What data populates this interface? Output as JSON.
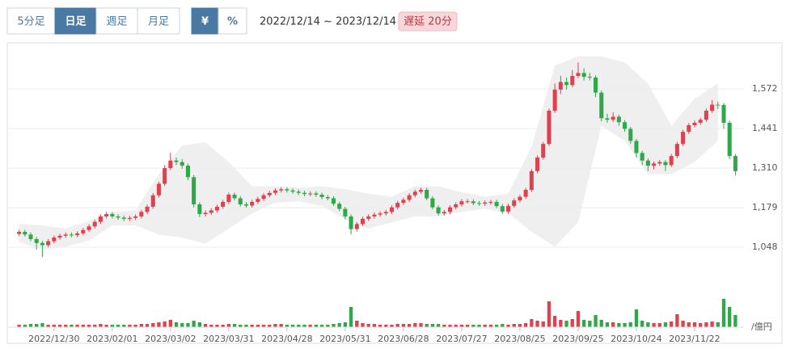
{
  "toolbar": {
    "intervals": [
      "5分足",
      "日足",
      "週足",
      "月足"
    ],
    "units": [
      "¥",
      "%"
    ],
    "range": "2022/12/14 ~ 2023/12/14",
    "delay": "遅延 20分"
  },
  "chart_data": {
    "type": "candlestick",
    "up_color": "#e0414f",
    "down_color": "#2fa84a",
    "band_color": "#efefef",
    "grid": true,
    "ylim": [
      984,
      1706
    ],
    "yticks": [
      {
        "value": 1048,
        "label": "1,048"
      },
      {
        "value": 1179,
        "label": "1,179"
      },
      {
        "value": 1310,
        "label": "1,310"
      },
      {
        "value": 1441,
        "label": "1,441"
      },
      {
        "value": 1572,
        "label": "1,572"
      }
    ],
    "volume_ylim": [
      0,
      40
    ],
    "volume_unit": "/億円",
    "categories": [
      null,
      null,
      null,
      null,
      null,
      null,
      "2022/12/30",
      null,
      null,
      null,
      null,
      null,
      null,
      null,
      null,
      null,
      "2023/02/01",
      null,
      null,
      null,
      null,
      null,
      null,
      null,
      null,
      null,
      "2023/03/02",
      null,
      null,
      null,
      null,
      null,
      null,
      null,
      null,
      null,
      "2023/03/31",
      null,
      null,
      null,
      null,
      null,
      null,
      null,
      null,
      null,
      "2023/04/28",
      null,
      null,
      null,
      null,
      null,
      null,
      null,
      null,
      null,
      "2023/05/31",
      null,
      null,
      null,
      null,
      null,
      null,
      null,
      null,
      null,
      "2023/06/28",
      null,
      null,
      null,
      null,
      null,
      null,
      null,
      null,
      null,
      "2023/07/27",
      null,
      null,
      null,
      null,
      null,
      null,
      null,
      null,
      null,
      "2023/08/25",
      null,
      null,
      null,
      null,
      null,
      null,
      null,
      null,
      null,
      "2023/09/25",
      null,
      null,
      null,
      null,
      null,
      null,
      null,
      null,
      null,
      "2023/10/24",
      null,
      null,
      null,
      null,
      null,
      null,
      null,
      null,
      null,
      "2023/11/22",
      null,
      null,
      null,
      null,
      null,
      null,
      null
    ],
    "open": [
      1092,
      1099,
      1090,
      1075,
      1062,
      1055,
      1068,
      1080,
      1086,
      1090,
      1088,
      1094,
      1105,
      1117,
      1132,
      1150,
      1158,
      1150,
      1146,
      1142,
      1145,
      1150,
      1165,
      1182,
      1220,
      1258,
      1310,
      1335,
      1330,
      1318,
      1280,
      1190,
      1158,
      1162,
      1170,
      1182,
      1198,
      1222,
      1210,
      1190,
      1186,
      1198,
      1208,
      1220,
      1228,
      1236,
      1240,
      1236,
      1232,
      1228,
      1224,
      1226,
      1222,
      1214,
      1210,
      1192,
      1175,
      1150,
      1108,
      1125,
      1142,
      1150,
      1156,
      1160,
      1165,
      1180,
      1195,
      1205,
      1220,
      1232,
      1238,
      1210,
      1180,
      1160,
      1165,
      1180,
      1190,
      1200,
      1200,
      1194,
      1192,
      1196,
      1198,
      1184,
      1166,
      1185,
      1203,
      1215,
      1238,
      1300,
      1345,
      1390,
      1500,
      1570,
      1595,
      1585,
      1615,
      1625,
      1612,
      1610,
      1560,
      1475,
      1470,
      1480,
      1462,
      1440,
      1400,
      1360,
      1335,
      1318,
      1325,
      1330,
      1320,
      1350,
      1390,
      1430,
      1452,
      1460,
      1470,
      1500,
      1520,
      1519,
      1460,
      1350
    ],
    "high": [
      1106,
      1106,
      1097,
      1082,
      1069,
      1075,
      1087,
      1093,
      1097,
      1097,
      1101,
      1112,
      1124,
      1139,
      1157,
      1165,
      1165,
      1157,
      1153,
      1152,
      1157,
      1172,
      1189,
      1227,
      1265,
      1320,
      1362,
      1345,
      1340,
      1325,
      1287,
      1197,
      1170,
      1177,
      1189,
      1205,
      1229,
      1229,
      1217,
      1197,
      1205,
      1215,
      1227,
      1235,
      1243,
      1247,
      1247,
      1243,
      1239,
      1235,
      1233,
      1233,
      1229,
      1221,
      1217,
      1199,
      1182,
      1157,
      1132,
      1149,
      1157,
      1163,
      1167,
      1172,
      1187,
      1202,
      1212,
      1227,
      1239,
      1245,
      1245,
      1217,
      1187,
      1172,
      1187,
      1197,
      1207,
      1207,
      1207,
      1201,
      1203,
      1205,
      1205,
      1191,
      1192,
      1210,
      1222,
      1245,
      1307,
      1352,
      1397,
      1507,
      1590,
      1615,
      1610,
      1635,
      1660,
      1640,
      1625,
      1617,
      1567,
      1490,
      1495,
      1487,
      1469,
      1447,
      1407,
      1367,
      1342,
      1332,
      1337,
      1337,
      1357,
      1397,
      1437,
      1459,
      1467,
      1477,
      1507,
      1535,
      1530,
      1526,
      1467,
      1357
    ],
    "low": [
      1085,
      1083,
      1068,
      1040,
      1016,
      1048,
      1061,
      1073,
      1079,
      1081,
      1081,
      1087,
      1098,
      1110,
      1125,
      1143,
      1143,
      1139,
      1135,
      1135,
      1138,
      1143,
      1158,
      1175,
      1213,
      1251,
      1303,
      1320,
      1308,
      1270,
      1180,
      1148,
      1150,
      1155,
      1163,
      1175,
      1191,
      1203,
      1183,
      1179,
      1179,
      1191,
      1201,
      1213,
      1221,
      1229,
      1229,
      1225,
      1221,
      1217,
      1217,
      1215,
      1207,
      1203,
      1185,
      1168,
      1140,
      1090,
      1100,
      1118,
      1135,
      1143,
      1149,
      1153,
      1158,
      1173,
      1188,
      1198,
      1213,
      1225,
      1203,
      1173,
      1153,
      1153,
      1158,
      1173,
      1183,
      1193,
      1187,
      1185,
      1185,
      1189,
      1177,
      1159,
      1159,
      1178,
      1196,
      1208,
      1231,
      1293,
      1338,
      1383,
      1493,
      1555,
      1570,
      1578,
      1608,
      1600,
      1600,
      1545,
      1465,
      1460,
      1463,
      1450,
      1430,
      1390,
      1345,
      1320,
      1300,
      1305,
      1318,
      1300,
      1313,
      1343,
      1383,
      1423,
      1445,
      1453,
      1463,
      1493,
      1505,
      1440,
      1340,
      1285
    ],
    "close": [
      1099,
      1090,
      1075,
      1062,
      1055,
      1068,
      1080,
      1086,
      1090,
      1088,
      1094,
      1105,
      1117,
      1132,
      1150,
      1158,
      1150,
      1146,
      1142,
      1145,
      1150,
      1165,
      1182,
      1220,
      1258,
      1310,
      1335,
      1330,
      1318,
      1280,
      1190,
      1158,
      1162,
      1170,
      1182,
      1198,
      1222,
      1210,
      1190,
      1186,
      1198,
      1208,
      1220,
      1228,
      1236,
      1240,
      1236,
      1232,
      1228,
      1224,
      1226,
      1222,
      1214,
      1210,
      1192,
      1175,
      1150,
      1108,
      1125,
      1142,
      1150,
      1156,
      1160,
      1165,
      1180,
      1195,
      1205,
      1220,
      1232,
      1238,
      1210,
      1180,
      1160,
      1165,
      1180,
      1190,
      1200,
      1200,
      1194,
      1192,
      1196,
      1198,
      1184,
      1166,
      1185,
      1203,
      1215,
      1238,
      1300,
      1345,
      1390,
      1500,
      1570,
      1595,
      1585,
      1615,
      1625,
      1612,
      1610,
      1560,
      1475,
      1470,
      1480,
      1462,
      1440,
      1400,
      1360,
      1335,
      1318,
      1325,
      1330,
      1320,
      1350,
      1390,
      1430,
      1452,
      1460,
      1470,
      1500,
      1520,
      1519,
      1460,
      1350,
      1300
    ],
    "volume": [
      3,
      3,
      4,
      4,
      5,
      3,
      3,
      3,
      3,
      3,
      3,
      3,
      3,
      3,
      4,
      3,
      3,
      3,
      3,
      3,
      3,
      4,
      4,
      5,
      6,
      7,
      9,
      6,
      5,
      5,
      8,
      6,
      4,
      3,
      3,
      3,
      4,
      4,
      3,
      3,
      3,
      3,
      3,
      3,
      4,
      4,
      3,
      3,
      3,
      3,
      3,
      3,
      3,
      3,
      4,
      5,
      6,
      25,
      8,
      5,
      4,
      4,
      3,
      3,
      3,
      4,
      4,
      4,
      5,
      5,
      4,
      4,
      4,
      3,
      3,
      3,
      3,
      3,
      3,
      3,
      3,
      3,
      3,
      4,
      3,
      4,
      4,
      5,
      10,
      8,
      7,
      32,
      14,
      9,
      8,
      10,
      20,
      9,
      8,
      15,
      9,
      6,
      6,
      5,
      5,
      6,
      22,
      8,
      6,
      5,
      5,
      6,
      7,
      16,
      8,
      6,
      6,
      5,
      6,
      7,
      6,
      35,
      25,
      15
    ],
    "band": {
      "upper": [
        1125,
        1120,
        1110,
        1135,
        1165,
        1170,
        1290,
        1385,
        1395,
        1330,
        1250,
        1250,
        1245,
        1250,
        1240,
        1225,
        1215,
        1250,
        1250,
        1230,
        1215,
        1225,
        1380,
        1650,
        1680,
        1680,
        1660,
        1590,
        1450,
        1540,
        1590
      ],
      "lower": [
        1065,
        1040,
        1050,
        1070,
        1120,
        1120,
        1090,
        1080,
        1060,
        1110,
        1160,
        1195,
        1200,
        1185,
        1140,
        1110,
        1130,
        1150,
        1150,
        1165,
        1175,
        1160,
        1100,
        1050,
        1130,
        1450,
        1400,
        1290,
        1290,
        1330,
        1400
      ]
    }
  }
}
